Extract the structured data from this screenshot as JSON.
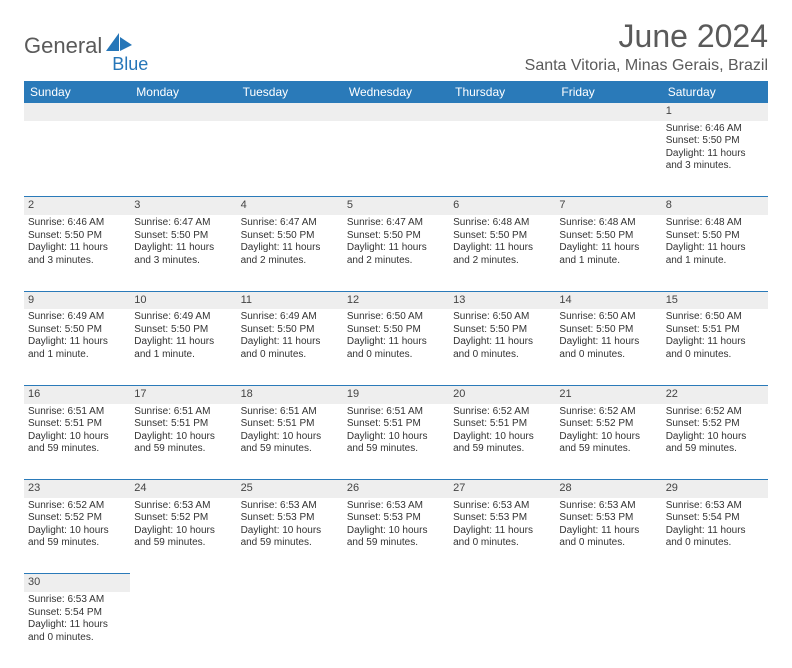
{
  "brand": {
    "part1": "General",
    "part2": "Blue"
  },
  "title": "June 2024",
  "location": "Santa Vitoria, Minas Gerais, Brazil",
  "colors": {
    "header_bg": "#2a7ab9",
    "header_text": "#ffffff",
    "daynum_bg": "#eeeeee",
    "border": "#2a7ab9",
    "logo_gray": "#5a5a5a",
    "logo_blue": "#2676b8"
  },
  "weekdays": [
    "Sunday",
    "Monday",
    "Tuesday",
    "Wednesday",
    "Thursday",
    "Friday",
    "Saturday"
  ],
  "weeks": [
    [
      null,
      null,
      null,
      null,
      null,
      null,
      {
        "n": "1",
        "sr": "Sunrise: 6:46 AM",
        "ss": "Sunset: 5:50 PM",
        "dl1": "Daylight: 11 hours",
        "dl2": "and 3 minutes."
      }
    ],
    [
      {
        "n": "2",
        "sr": "Sunrise: 6:46 AM",
        "ss": "Sunset: 5:50 PM",
        "dl1": "Daylight: 11 hours",
        "dl2": "and 3 minutes."
      },
      {
        "n": "3",
        "sr": "Sunrise: 6:47 AM",
        "ss": "Sunset: 5:50 PM",
        "dl1": "Daylight: 11 hours",
        "dl2": "and 3 minutes."
      },
      {
        "n": "4",
        "sr": "Sunrise: 6:47 AM",
        "ss": "Sunset: 5:50 PM",
        "dl1": "Daylight: 11 hours",
        "dl2": "and 2 minutes."
      },
      {
        "n": "5",
        "sr": "Sunrise: 6:47 AM",
        "ss": "Sunset: 5:50 PM",
        "dl1": "Daylight: 11 hours",
        "dl2": "and 2 minutes."
      },
      {
        "n": "6",
        "sr": "Sunrise: 6:48 AM",
        "ss": "Sunset: 5:50 PM",
        "dl1": "Daylight: 11 hours",
        "dl2": "and 2 minutes."
      },
      {
        "n": "7",
        "sr": "Sunrise: 6:48 AM",
        "ss": "Sunset: 5:50 PM",
        "dl1": "Daylight: 11 hours",
        "dl2": "and 1 minute."
      },
      {
        "n": "8",
        "sr": "Sunrise: 6:48 AM",
        "ss": "Sunset: 5:50 PM",
        "dl1": "Daylight: 11 hours",
        "dl2": "and 1 minute."
      }
    ],
    [
      {
        "n": "9",
        "sr": "Sunrise: 6:49 AM",
        "ss": "Sunset: 5:50 PM",
        "dl1": "Daylight: 11 hours",
        "dl2": "and 1 minute."
      },
      {
        "n": "10",
        "sr": "Sunrise: 6:49 AM",
        "ss": "Sunset: 5:50 PM",
        "dl1": "Daylight: 11 hours",
        "dl2": "and 1 minute."
      },
      {
        "n": "11",
        "sr": "Sunrise: 6:49 AM",
        "ss": "Sunset: 5:50 PM",
        "dl1": "Daylight: 11 hours",
        "dl2": "and 0 minutes."
      },
      {
        "n": "12",
        "sr": "Sunrise: 6:50 AM",
        "ss": "Sunset: 5:50 PM",
        "dl1": "Daylight: 11 hours",
        "dl2": "and 0 minutes."
      },
      {
        "n": "13",
        "sr": "Sunrise: 6:50 AM",
        "ss": "Sunset: 5:50 PM",
        "dl1": "Daylight: 11 hours",
        "dl2": "and 0 minutes."
      },
      {
        "n": "14",
        "sr": "Sunrise: 6:50 AM",
        "ss": "Sunset: 5:50 PM",
        "dl1": "Daylight: 11 hours",
        "dl2": "and 0 minutes."
      },
      {
        "n": "15",
        "sr": "Sunrise: 6:50 AM",
        "ss": "Sunset: 5:51 PM",
        "dl1": "Daylight: 11 hours",
        "dl2": "and 0 minutes."
      }
    ],
    [
      {
        "n": "16",
        "sr": "Sunrise: 6:51 AM",
        "ss": "Sunset: 5:51 PM",
        "dl1": "Daylight: 10 hours",
        "dl2": "and 59 minutes."
      },
      {
        "n": "17",
        "sr": "Sunrise: 6:51 AM",
        "ss": "Sunset: 5:51 PM",
        "dl1": "Daylight: 10 hours",
        "dl2": "and 59 minutes."
      },
      {
        "n": "18",
        "sr": "Sunrise: 6:51 AM",
        "ss": "Sunset: 5:51 PM",
        "dl1": "Daylight: 10 hours",
        "dl2": "and 59 minutes."
      },
      {
        "n": "19",
        "sr": "Sunrise: 6:51 AM",
        "ss": "Sunset: 5:51 PM",
        "dl1": "Daylight: 10 hours",
        "dl2": "and 59 minutes."
      },
      {
        "n": "20",
        "sr": "Sunrise: 6:52 AM",
        "ss": "Sunset: 5:51 PM",
        "dl1": "Daylight: 10 hours",
        "dl2": "and 59 minutes."
      },
      {
        "n": "21",
        "sr": "Sunrise: 6:52 AM",
        "ss": "Sunset: 5:52 PM",
        "dl1": "Daylight: 10 hours",
        "dl2": "and 59 minutes."
      },
      {
        "n": "22",
        "sr": "Sunrise: 6:52 AM",
        "ss": "Sunset: 5:52 PM",
        "dl1": "Daylight: 10 hours",
        "dl2": "and 59 minutes."
      }
    ],
    [
      {
        "n": "23",
        "sr": "Sunrise: 6:52 AM",
        "ss": "Sunset: 5:52 PM",
        "dl1": "Daylight: 10 hours",
        "dl2": "and 59 minutes."
      },
      {
        "n": "24",
        "sr": "Sunrise: 6:53 AM",
        "ss": "Sunset: 5:52 PM",
        "dl1": "Daylight: 10 hours",
        "dl2": "and 59 minutes."
      },
      {
        "n": "25",
        "sr": "Sunrise: 6:53 AM",
        "ss": "Sunset: 5:53 PM",
        "dl1": "Daylight: 10 hours",
        "dl2": "and 59 minutes."
      },
      {
        "n": "26",
        "sr": "Sunrise: 6:53 AM",
        "ss": "Sunset: 5:53 PM",
        "dl1": "Daylight: 10 hours",
        "dl2": "and 59 minutes."
      },
      {
        "n": "27",
        "sr": "Sunrise: 6:53 AM",
        "ss": "Sunset: 5:53 PM",
        "dl1": "Daylight: 11 hours",
        "dl2": "and 0 minutes."
      },
      {
        "n": "28",
        "sr": "Sunrise: 6:53 AM",
        "ss": "Sunset: 5:53 PM",
        "dl1": "Daylight: 11 hours",
        "dl2": "and 0 minutes."
      },
      {
        "n": "29",
        "sr": "Sunrise: 6:53 AM",
        "ss": "Sunset: 5:54 PM",
        "dl1": "Daylight: 11 hours",
        "dl2": "and 0 minutes."
      }
    ],
    [
      {
        "n": "30",
        "sr": "Sunrise: 6:53 AM",
        "ss": "Sunset: 5:54 PM",
        "dl1": "Daylight: 11 hours",
        "dl2": "and 0 minutes."
      },
      null,
      null,
      null,
      null,
      null,
      null
    ]
  ]
}
